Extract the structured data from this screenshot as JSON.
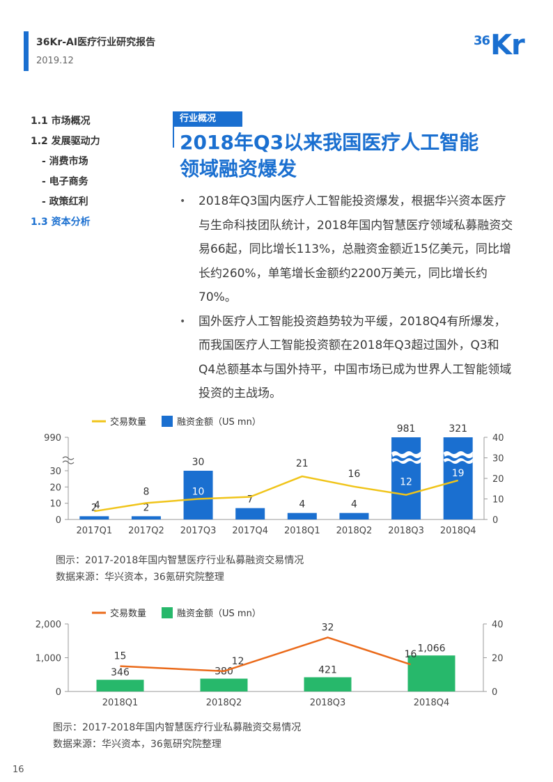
{
  "header": {
    "report_title": "36Kr-AI医疗行业研究报告",
    "date": "2019.12",
    "logo_text_small": "36",
    "logo_text_big": "Kr"
  },
  "nav": {
    "items": [
      {
        "label": "1.1 市场概况"
      },
      {
        "label": "1.2 发展驱动力"
      },
      {
        "label": "- 消费市场"
      },
      {
        "label": "- 电子商务"
      },
      {
        "label": "- 政策红利"
      },
      {
        "label": "1.3 资本分析"
      }
    ]
  },
  "section": {
    "tag": "行业概况",
    "title_line1": "2018年Q3以来我国医疗人工智能",
    "title_line2": "领域融资爆发"
  },
  "bullets": [
    "2018年Q3国内医疗人工智能投资爆发，根据华兴资本医疗与生命科技团队统计，2018年国内智慧医疗领域私募融资交易66起，同比增长113%，总融资金额近15亿美元，同比增长约260%，单笔增长金额约2200万美元，同比增长约70%。",
    "国外医疗人工智能投资趋势较为平缓，2018Q4有所爆发，而我国医疗人工智能投资额在2018年Q3超过国外，Q3和Q4总额基本与国外持平，中国市场已成为世界人工智能领域投资的主战场。"
  ],
  "chart_data": [
    {
      "type": "bar",
      "legend": {
        "line": "交易数量",
        "bar": "融资金额（US mn）"
      },
      "categories": [
        "2017Q1",
        "2017Q2",
        "2017Q3",
        "2017Q4",
        "2018Q1",
        "2018Q2",
        "2018Q3",
        "2018Q4"
      ],
      "series": [
        {
          "name": "融资金额（US mn）",
          "kind": "bar",
          "axis": "left",
          "values": [
            2,
            2,
            30,
            7,
            4,
            4,
            981,
            321
          ]
        },
        {
          "name": "交易数量",
          "kind": "line",
          "axis": "right",
          "values": [
            4,
            8,
            10,
            11,
            21,
            16,
            12,
            19
          ]
        }
      ],
      "bar_labels": [
        "2",
        "2",
        "30",
        "7",
        "4",
        "4",
        "981",
        "321"
      ],
      "line_labels": [
        "4",
        "8",
        "10",
        "",
        "21",
        "16",
        "12",
        "19"
      ],
      "left_axis": {
        "ticks": [
          "0",
          "10",
          "20",
          "30",
          "990"
        ],
        "break": true
      },
      "right_axis": {
        "ticks": [
          "0",
          "10",
          "20",
          "30",
          "40"
        ],
        "ylim": [
          0,
          40
        ]
      },
      "colors": {
        "bar": "#1a6fd0",
        "line": "#f0c419"
      },
      "caption": "图示：2017-2018年国内智慧医疗行业私募融资交易情况",
      "source": "数据来源：华兴资本，36氪研究院整理"
    },
    {
      "type": "bar",
      "legend": {
        "line": "交易数量",
        "bar": "融资金额（US mn）"
      },
      "categories": [
        "2018Q1",
        "2018Q2",
        "2018Q3",
        "2018Q4"
      ],
      "series": [
        {
          "name": "融资金额（US mn）",
          "kind": "bar",
          "axis": "left",
          "values": [
            346,
            380,
            421,
            1066
          ]
        },
        {
          "name": "交易数量",
          "kind": "line",
          "axis": "right",
          "values": [
            15,
            12,
            32,
            16
          ]
        }
      ],
      "bar_labels": [
        "346",
        "380",
        "421",
        "1,066"
      ],
      "line_labels": [
        "15",
        "12",
        "32",
        "16"
      ],
      "left_axis": {
        "ticks": [
          "0",
          "1,000",
          "2,000"
        ],
        "ylim": [
          0,
          2000
        ]
      },
      "right_axis": {
        "ticks": [
          "0",
          "20",
          "40"
        ],
        "ylim": [
          0,
          40
        ]
      },
      "colors": {
        "bar": "#27b86b",
        "line": "#ea6a1a"
      },
      "caption": "图示：2017-2018年国内智慧医疗行业私募融资交易情况",
      "source": "数据来源：华兴资本，36氪研究院整理"
    }
  ],
  "page_number": "16"
}
